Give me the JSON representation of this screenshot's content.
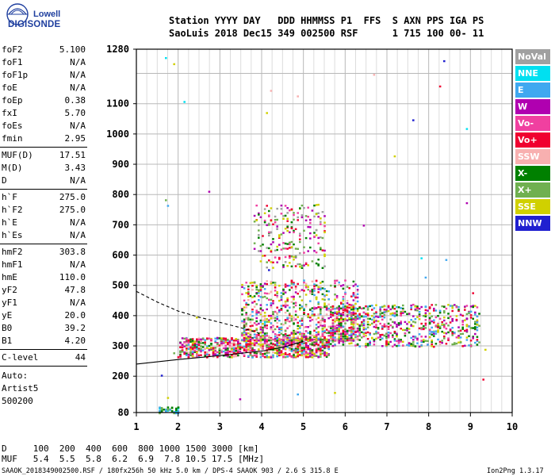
{
  "logo": {
    "line1": "Lowell",
    "line2": "DIGISONDE"
  },
  "header": {
    "row1": "Station YYYY DAY   DDD HHMMSS P1  FFS  S AXN PPS IGA PS",
    "row2": "SaoLuis 2018 Dec15 349 002500 RSF      1 715 100 00- 11"
  },
  "params": {
    "group1": [
      {
        "k": "foF2",
        "v": "5.100"
      },
      {
        "k": "foF1",
        "v": "N/A"
      },
      {
        "k": "foF1p",
        "v": "N/A"
      },
      {
        "k": "foE",
        "v": "N/A"
      },
      {
        "k": "foEp",
        "v": "0.38"
      },
      {
        "k": "fxI",
        "v": "5.70"
      },
      {
        "k": "foEs",
        "v": "N/A"
      },
      {
        "k": "fmin",
        "v": "2.95"
      }
    ],
    "group2": [
      {
        "k": "MUF(D)",
        "v": "17.51"
      },
      {
        "k": "M(D)",
        "v": "3.43"
      },
      {
        "k": "D",
        "v": "N/A"
      }
    ],
    "group3": [
      {
        "k": "h`F",
        "v": "275.0"
      },
      {
        "k": "h`F2",
        "v": "275.0"
      },
      {
        "k": "h`E",
        "v": "N/A"
      },
      {
        "k": "h`Es",
        "v": "N/A"
      }
    ],
    "group4": [
      {
        "k": "hmF2",
        "v": "303.8"
      },
      {
        "k": "hmF1",
        "v": "N/A"
      },
      {
        "k": "hmE",
        "v": "110.0"
      },
      {
        "k": "yF2",
        "v": "47.8"
      },
      {
        "k": "yF1",
        "v": "N/A"
      },
      {
        "k": "yE",
        "v": "20.0"
      },
      {
        "k": "B0",
        "v": "39.2"
      },
      {
        "k": "B1",
        "v": "4.20"
      }
    ],
    "clevel": {
      "k": "C-level",
      "v": "44"
    },
    "auto": [
      "Auto:",
      "Artist5",
      "500200"
    ]
  },
  "legend": [
    {
      "label": "NoVal",
      "color": "#a0a0a0"
    },
    {
      "label": "NNE",
      "color": "#00e0f0"
    },
    {
      "label": "E",
      "color": "#40a8f0"
    },
    {
      "label": "W",
      "color": "#b000b0"
    },
    {
      "label": "Vo-",
      "color": "#f040a0"
    },
    {
      "label": "Vo+",
      "color": "#f00030"
    },
    {
      "label": "SSW",
      "color": "#f8b0b0"
    },
    {
      "label": "X-",
      "color": "#008000"
    },
    {
      "label": "X+",
      "color": "#70b050"
    },
    {
      "label": "SSE",
      "color": "#d0d000"
    },
    {
      "label": "NNW",
      "color": "#2020d0"
    }
  ],
  "footer": {
    "d_row": "D     100  200  400  600  800 1000 1500 3000 [km]",
    "muf_row": "MUF   5.4  5.5  5.8  6.2  6.9  7.8 10.5 17.5 [MHz]",
    "bottom_left": "SAAOK_2018349002500.RSF / 180fx256h 50 kHz 5.0 km / DPS-4 SAAOK 903 / 2.6 S 315.8 E",
    "bottom_right": "Ion2Png 1.3.17"
  },
  "chart_data": {
    "type": "scatter",
    "title": "",
    "xlabel": "",
    "ylabel": "",
    "xlim": [
      1,
      10
    ],
    "ylim": [
      80,
      1280
    ],
    "x_ticks": [
      1,
      2,
      3,
      4,
      5,
      6,
      7,
      8,
      9,
      10
    ],
    "y_ticks": [
      80,
      200,
      300,
      400,
      500,
      600,
      700,
      800,
      900,
      1000,
      1100,
      1280
    ],
    "y_gridlines": [
      80,
      200,
      300,
      400,
      500,
      600,
      700,
      800,
      900,
      1000,
      1100,
      1200,
      1280
    ],
    "x_minor_step": 0.25,
    "grid": true,
    "clusters": [
      {
        "name": "F-layer o-trace",
        "x_range": [
          2.0,
          5.6
        ],
        "y_range": [
          265,
          330
        ],
        "density": 900,
        "colors": [
          "#f00030",
          "#f040a0",
          "#f00030",
          "#008000",
          "#70b050",
          "#d0d000",
          "#40a8f0",
          "#b000b0",
          "#f8b0b0"
        ]
      },
      {
        "name": "F-layer spread",
        "x_range": [
          3.5,
          6.3
        ],
        "y_range": [
          320,
          520
        ],
        "density": 900,
        "colors": [
          "#f00030",
          "#f040a0",
          "#008000",
          "#70b050",
          "#d0d000",
          "#b000b0",
          "#40a8f0",
          "#f8b0b0"
        ]
      },
      {
        "name": "F-layer tail",
        "x_range": [
          5.6,
          9.2
        ],
        "y_range": [
          300,
          440
        ],
        "density": 700,
        "colors": [
          "#d0d000",
          "#70b050",
          "#008000",
          "#f040a0",
          "#f00030",
          "#b000b0",
          "#40a8f0"
        ]
      },
      {
        "name": "multi-hop",
        "x_range": [
          3.8,
          5.5
        ],
        "y_range": [
          560,
          770
        ],
        "density": 220,
        "colors": [
          "#f00030",
          "#f040a0",
          "#008000",
          "#70b050",
          "#d0d000",
          "#b000b0",
          "#a0a0a0"
        ]
      },
      {
        "name": "low-frequency noise",
        "x_range": [
          1.5,
          2.0
        ],
        "y_range": [
          80,
          100
        ],
        "density": 40,
        "colors": [
          "#40a8f0",
          "#00e0f0",
          "#008000",
          "#70b050"
        ]
      },
      {
        "name": "scattered",
        "x_range": [
          1.6,
          9.5
        ],
        "y_range": [
          120,
          1280
        ],
        "density": 45,
        "colors": [
          "#40a8f0",
          "#00e0f0",
          "#d0d000",
          "#f00030",
          "#b000b0",
          "#2020d0",
          "#f8b0b0",
          "#70b050"
        ]
      }
    ],
    "profile_solid": [
      [
        1.0,
        240
      ],
      [
        2.0,
        255
      ],
      [
        3.0,
        268
      ],
      [
        4.0,
        283
      ],
      [
        4.5,
        295
      ],
      [
        5.0,
        315
      ]
    ],
    "profile_dashed": [
      [
        1.0,
        480
      ],
      [
        1.5,
        445
      ],
      [
        2.0,
        415
      ],
      [
        2.5,
        395
      ],
      [
        3.0,
        378
      ],
      [
        3.5,
        360
      ],
      [
        4.0,
        340
      ]
    ]
  }
}
